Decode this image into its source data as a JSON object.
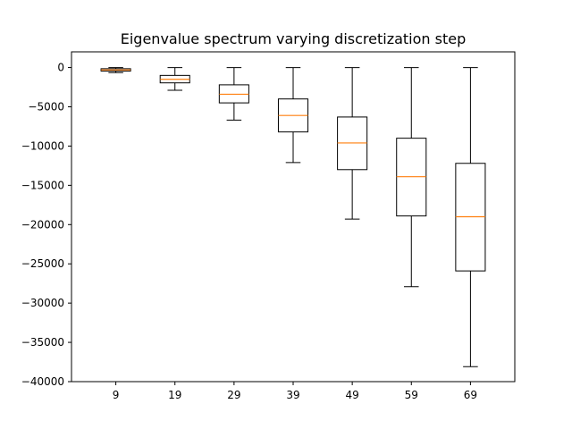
{
  "chart_data": {
    "type": "box",
    "title": "Eigenvalue spectrum varying discretization step",
    "xlabel": "",
    "ylabel": "",
    "categories": [
      "9",
      "19",
      "29",
      "39",
      "49",
      "59",
      "69"
    ],
    "ylim": [
      -40000,
      2000
    ],
    "yticks": [
      0,
      -5000,
      -10000,
      -15000,
      -20000,
      -25000,
      -30000,
      -35000,
      -40000
    ],
    "ytick_labels": [
      "0",
      "−5000",
      "−10000",
      "−15000",
      "−20000",
      "−25000",
      "−30000",
      "−35000",
      "−40000"
    ],
    "boxes": [
      {
        "label": "9",
        "whisker_high": 0,
        "q3": -150,
        "median": -300,
        "q1": -450,
        "whisker_low": -650
      },
      {
        "label": "19",
        "whisker_high": 0,
        "q3": -1000,
        "median": -1500,
        "q1": -1950,
        "whisker_low": -2900
      },
      {
        "label": "29",
        "whisker_high": 0,
        "q3": -2200,
        "median": -3400,
        "q1": -4500,
        "whisker_low": -6700
      },
      {
        "label": "39",
        "whisker_high": 0,
        "q3": -4000,
        "median": -6100,
        "q1": -8200,
        "whisker_low": -12100
      },
      {
        "label": "49",
        "whisker_high": 0,
        "q3": -6300,
        "median": -9600,
        "q1": -13000,
        "whisker_low": -19300
      },
      {
        "label": "59",
        "whisker_high": 0,
        "q3": -9000,
        "median": -13900,
        "q1": -18900,
        "whisker_low": -27900
      },
      {
        "label": "69",
        "whisker_high": 0,
        "q3": -12200,
        "median": -19000,
        "q1": -25900,
        "whisker_low": -38100
      }
    ],
    "colors": {
      "box": "#000000",
      "median": "#ff7f0e",
      "axes": "#000000"
    },
    "grid": false,
    "legend": "none"
  }
}
